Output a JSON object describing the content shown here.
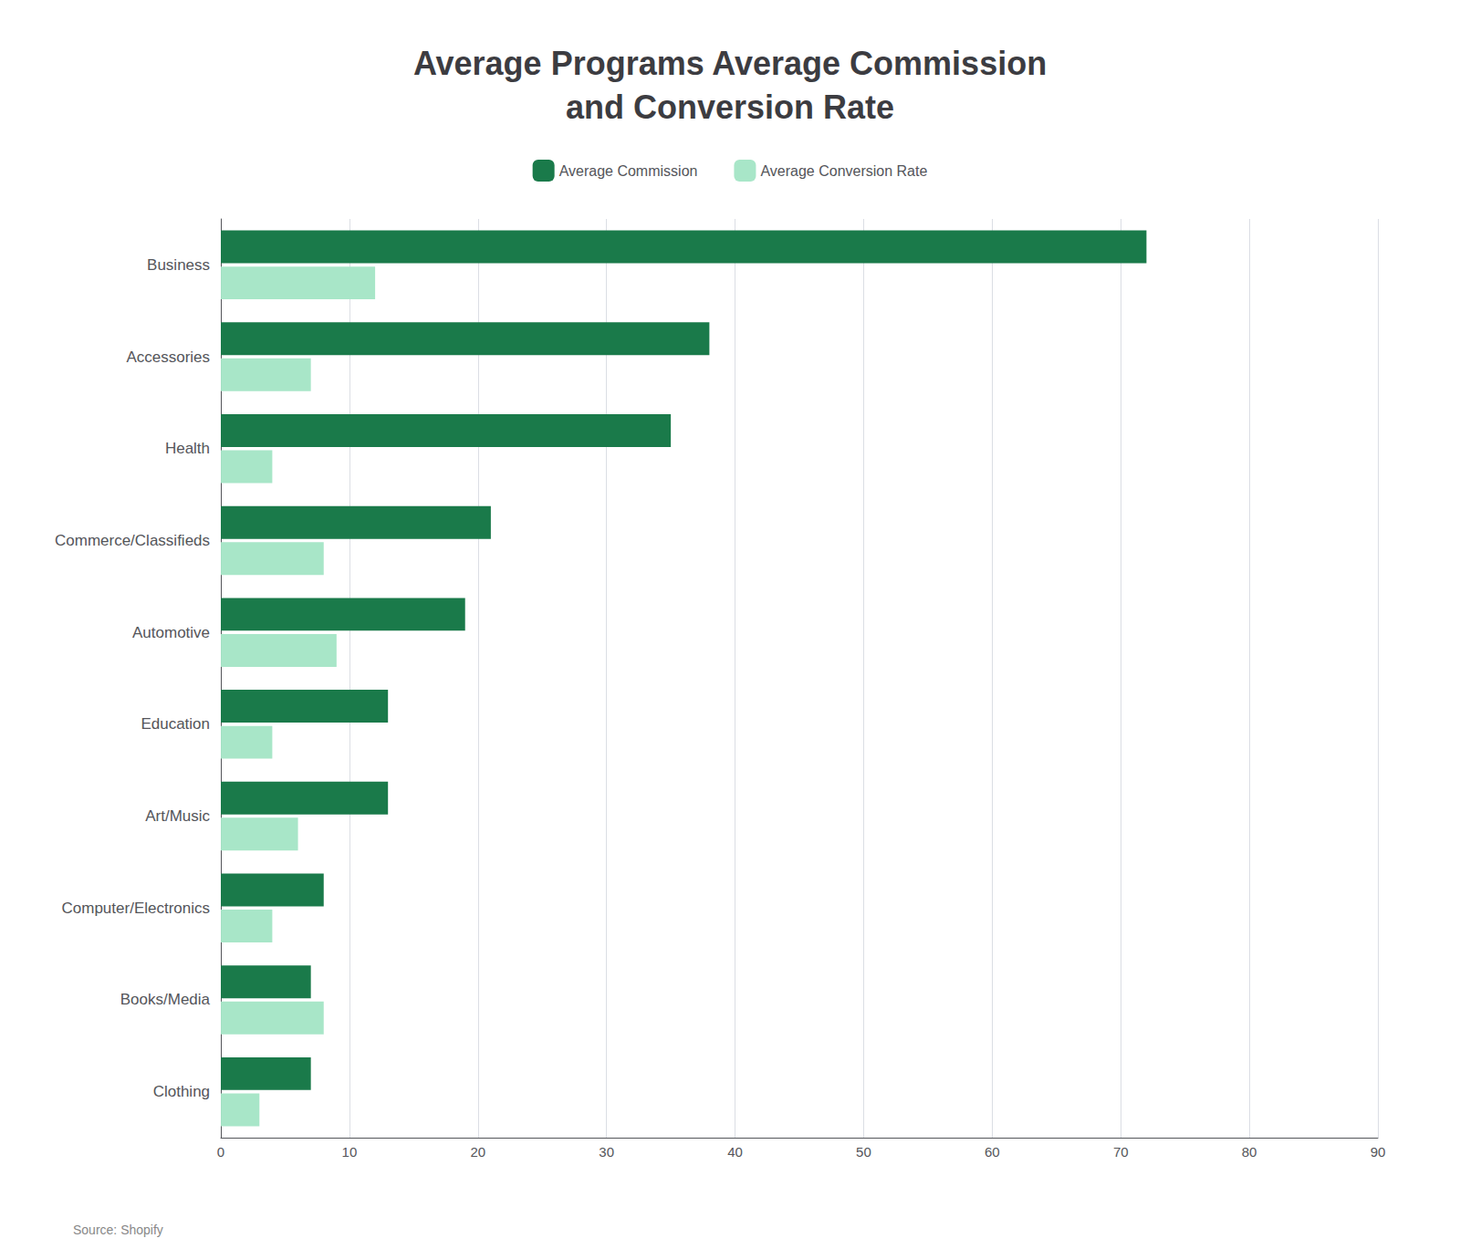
{
  "chart_data": {
    "type": "bar",
    "orientation": "horizontal",
    "title": "Average Programs Average Commission\nand Conversion Rate",
    "categories": [
      "Business",
      "Accessories",
      "Health",
      "Commerce/Classifieds",
      "Automotive",
      "Education",
      "Art/Music",
      "Computer/Electronics",
      "Books/Media",
      "Clothing"
    ],
    "series": [
      {
        "name": "Average Commission",
        "color": "#1a7a4a",
        "values": [
          72,
          38,
          35,
          21,
          19,
          13,
          13,
          8,
          7,
          7
        ]
      },
      {
        "name": "Average Conversion Rate",
        "color": "#a8e6c8",
        "values": [
          12,
          7,
          4,
          8,
          9,
          4,
          6,
          4,
          8,
          3
        ]
      }
    ],
    "xlim": [
      0,
      90
    ],
    "xticks": [
      0,
      10,
      20,
      30,
      40,
      50,
      60,
      70,
      80,
      90
    ],
    "grid": true,
    "legend": "top",
    "annotations": [
      "Source: Shopify"
    ]
  }
}
